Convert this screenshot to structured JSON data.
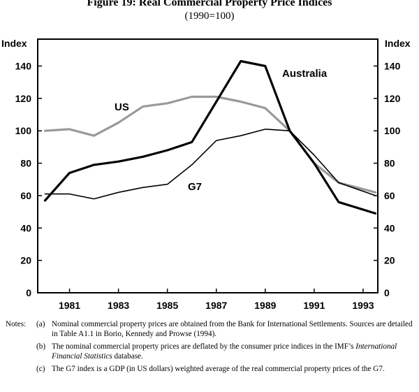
{
  "header": {
    "title": "Figure 19: Real Commercial Property Price Indices",
    "subtitle": "(1990=100)"
  },
  "chart_data": {
    "type": "line",
    "title": "Figure 19: Real Commercial Property Price Indices",
    "subtitle": "(1990=100)",
    "ylabel_left": "Index",
    "ylabel_right": "Index",
    "ylim": [
      0,
      160
    ],
    "yticks": [
      0,
      20,
      40,
      60,
      80,
      100,
      120,
      140
    ],
    "xlim": [
      1979.7,
      1993.6
    ],
    "xticks": [
      1981,
      1983,
      1985,
      1987,
      1989,
      1991,
      1993
    ],
    "xtick_labels": [
      "1981",
      "1983",
      "1985",
      "1987",
      "1989",
      "1991",
      "1993"
    ],
    "grid": false,
    "series": [
      {
        "name": "US",
        "color": "#9a9a9a",
        "x": [
          1980,
          1981,
          1982,
          1983,
          1984,
          1985,
          1986,
          1987,
          1988,
          1989,
          1990,
          1991,
          1992,
          1993.5
        ],
        "values": [
          100,
          101,
          97,
          105,
          115,
          117,
          121,
          121,
          118,
          114,
          100,
          80,
          68,
          62
        ]
      },
      {
        "name": "Australia",
        "color": "#000000",
        "x": [
          1980,
          1981,
          1982,
          1983,
          1984,
          1985,
          1986,
          1987,
          1988,
          1989,
          1990,
          1991,
          1992,
          1993.5
        ],
        "values": [
          57,
          74,
          79,
          81,
          84,
          88,
          93,
          118,
          143,
          140,
          100,
          80,
          56,
          49
        ]
      },
      {
        "name": "G7",
        "color": "#000000",
        "x": [
          1980,
          1981,
          1982,
          1983,
          1984,
          1985,
          1986,
          1987,
          1988,
          1989,
          1990,
          1991,
          1992,
          1993.5
        ],
        "values": [
          61,
          61,
          58,
          62,
          65,
          67,
          79,
          94,
          97,
          101,
          100,
          85,
          68,
          60
        ]
      }
    ]
  },
  "notes": {
    "heading": "Notes:",
    "items": [
      {
        "key": "(a)",
        "text": "Nominal commercial property prices are obtained from the Bank for International Settlements. Sources are detailed in Table A1.1 in Borio, Kennedy and Prowse (1994)."
      },
      {
        "key": "(b)",
        "text_before": "The nominal commercial property prices are deflated by the consumer price indices in the IMF’s ",
        "text_italic": "International Financial Statistics",
        "text_after": " database."
      },
      {
        "key": "(c)",
        "text": "The G7 index is a GDP (in US dollars) weighted average of the real commercial property prices of the G7."
      }
    ]
  }
}
